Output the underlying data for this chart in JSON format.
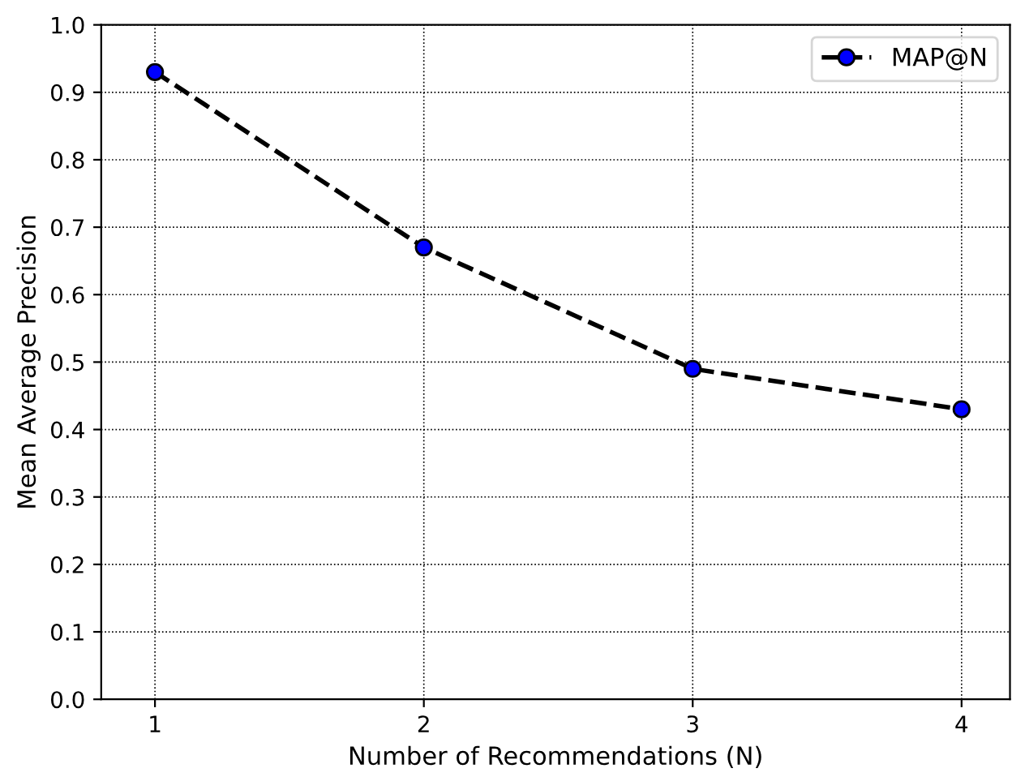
{
  "chart_data": {
    "type": "line",
    "xlabel": "Number of Recommendations (N)",
    "ylabel": "Mean Average Precision",
    "x": [
      1,
      2,
      3,
      4
    ],
    "series": [
      {
        "name": "MAP@N",
        "color": "#000000",
        "colors": [
          "#0000ff",
          "#0000ff",
          "#0000ff",
          "#0000ff"
        ],
        "values": [
          0.93,
          0.67,
          0.49,
          0.43
        ]
      }
    ],
    "xlim": [
      0.8,
      4.18
    ],
    "xticks": [
      1,
      2,
      3,
      4
    ],
    "ylim": [
      0,
      1
    ],
    "yticks": [
      {
        "value": 0,
        "label": "0.0"
      },
      0.1,
      0.2,
      0.3,
      0.4,
      0.5,
      0.6,
      0.7,
      0.8,
      0.9,
      {
        "value": 1,
        "label": "1.0"
      }
    ],
    "grid": true,
    "legend": "top right",
    "marker": "circle",
    "line_style": "dashed"
  }
}
